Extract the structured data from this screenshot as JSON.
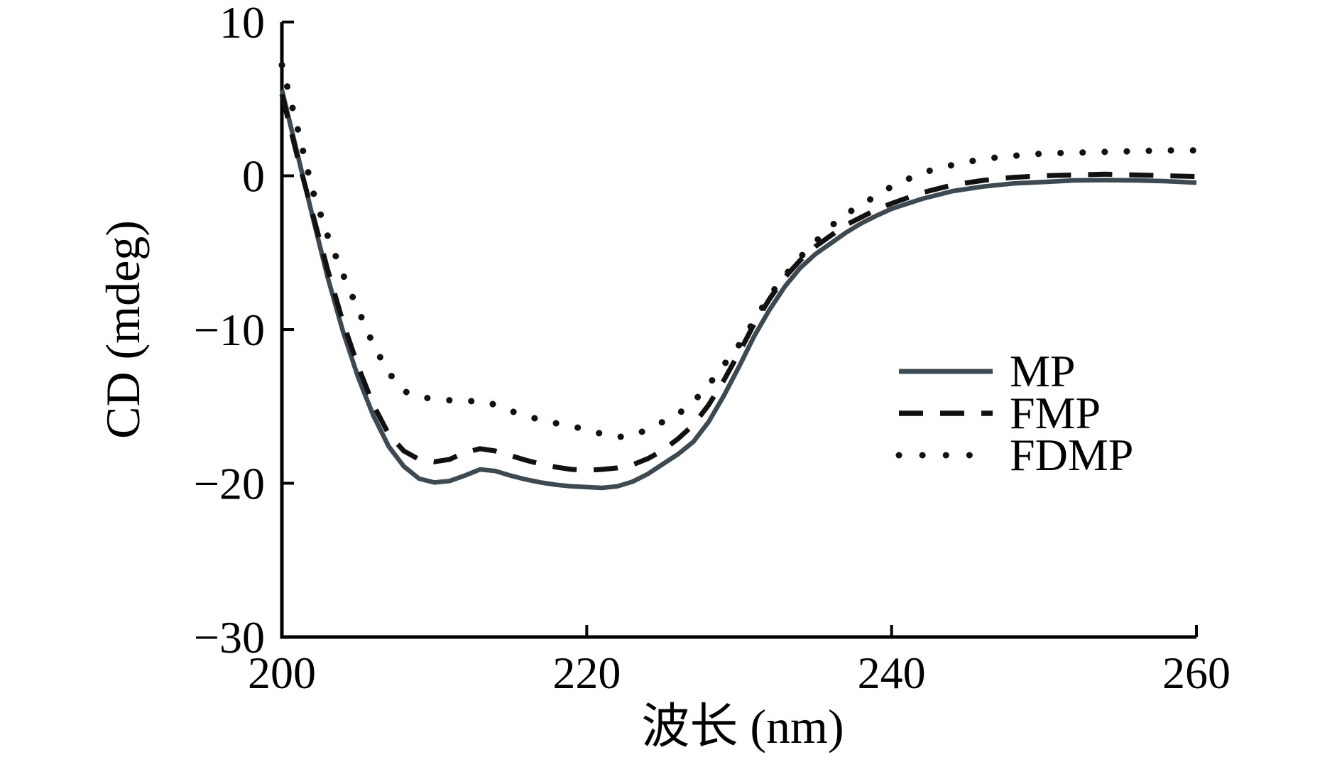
{
  "chart_data": {
    "type": "line",
    "title": "",
    "xlabel": "波长 (nm)",
    "ylabel": "CD (mdeg)",
    "xlim": [
      200,
      260
    ],
    "ylim": [
      -30,
      10
    ],
    "grid": false,
    "legend_position": "center-right",
    "xticks": {
      "values": [
        200,
        220,
        240,
        260
      ],
      "labels": [
        "200",
        "220",
        "240",
        "260"
      ]
    },
    "yticks": {
      "values": [
        10,
        0,
        -10,
        -20,
        -30
      ],
      "labels": [
        "10",
        "0",
        "−10",
        "−20",
        "−30"
      ]
    },
    "x": [
      200,
      201,
      202,
      203,
      204,
      205,
      206,
      207,
      208,
      209,
      210,
      211,
      212,
      213,
      214,
      215,
      216,
      217,
      218,
      219,
      220,
      221,
      222,
      223,
      224,
      225,
      226,
      227,
      228,
      229,
      230,
      231,
      232,
      233,
      234,
      235,
      236,
      237,
      238,
      239,
      240,
      242,
      244,
      246,
      248,
      250,
      252,
      254,
      256,
      258,
      260
    ],
    "series": [
      {
        "name": "MP",
        "line_style": "solid",
        "color": "#3d4a52",
        "values": [
          5.6,
          1.5,
          -2.6,
          -6.6,
          -10.1,
          -13.1,
          -15.6,
          -17.6,
          -18.9,
          -19.7,
          -19.95,
          -19.85,
          -19.5,
          -19.1,
          -19.2,
          -19.5,
          -19.75,
          -19.95,
          -20.1,
          -20.2,
          -20.25,
          -20.3,
          -20.2,
          -19.9,
          -19.4,
          -18.75,
          -18.1,
          -17.3,
          -16.0,
          -14.3,
          -12.4,
          -10.4,
          -8.7,
          -7.2,
          -6.0,
          -5.1,
          -4.4,
          -3.7,
          -3.1,
          -2.6,
          -2.15,
          -1.5,
          -1.0,
          -0.7,
          -0.5,
          -0.4,
          -0.3,
          -0.28,
          -0.3,
          -0.35,
          -0.45
        ]
      },
      {
        "name": "FMP",
        "line_style": "dashed",
        "color": "#111111",
        "values": [
          5.3,
          1.3,
          -2.4,
          -6.1,
          -9.5,
          -12.4,
          -14.9,
          -16.8,
          -17.9,
          -18.45,
          -18.6,
          -18.45,
          -18.0,
          -17.75,
          -17.9,
          -18.2,
          -18.5,
          -18.75,
          -18.95,
          -19.1,
          -19.15,
          -19.1,
          -19.0,
          -18.8,
          -18.4,
          -17.85,
          -17.1,
          -16.2,
          -14.9,
          -13.3,
          -11.5,
          -9.6,
          -8.0,
          -6.6,
          -5.5,
          -4.6,
          -3.9,
          -3.2,
          -2.7,
          -2.2,
          -1.8,
          -1.1,
          -0.6,
          -0.3,
          -0.1,
          0.0,
          0.05,
          0.1,
          0.05,
          0.0,
          -0.05
        ]
      },
      {
        "name": "FDMP",
        "line_style": "dotted",
        "color": "#111111",
        "values": [
          7.2,
          3.2,
          -0.9,
          -3.9,
          -6.4,
          -8.7,
          -11.0,
          -12.8,
          -14.0,
          -14.4,
          -14.5,
          -14.6,
          -14.7,
          -14.6,
          -14.9,
          -15.3,
          -15.6,
          -15.9,
          -16.1,
          -16.3,
          -16.5,
          -16.8,
          -17.0,
          -16.9,
          -16.5,
          -16.0,
          -15.5,
          -14.7,
          -13.6,
          -12.3,
          -11.0,
          -9.4,
          -7.8,
          -6.5,
          -5.3,
          -4.3,
          -3.3,
          -2.5,
          -1.9,
          -1.3,
          -0.7,
          0.2,
          0.7,
          1.1,
          1.3,
          1.45,
          1.5,
          1.55,
          1.6,
          1.65,
          1.65
        ]
      }
    ]
  },
  "colors": {
    "background": "#ffffff",
    "axis": "#000000",
    "text": "#000000"
  }
}
